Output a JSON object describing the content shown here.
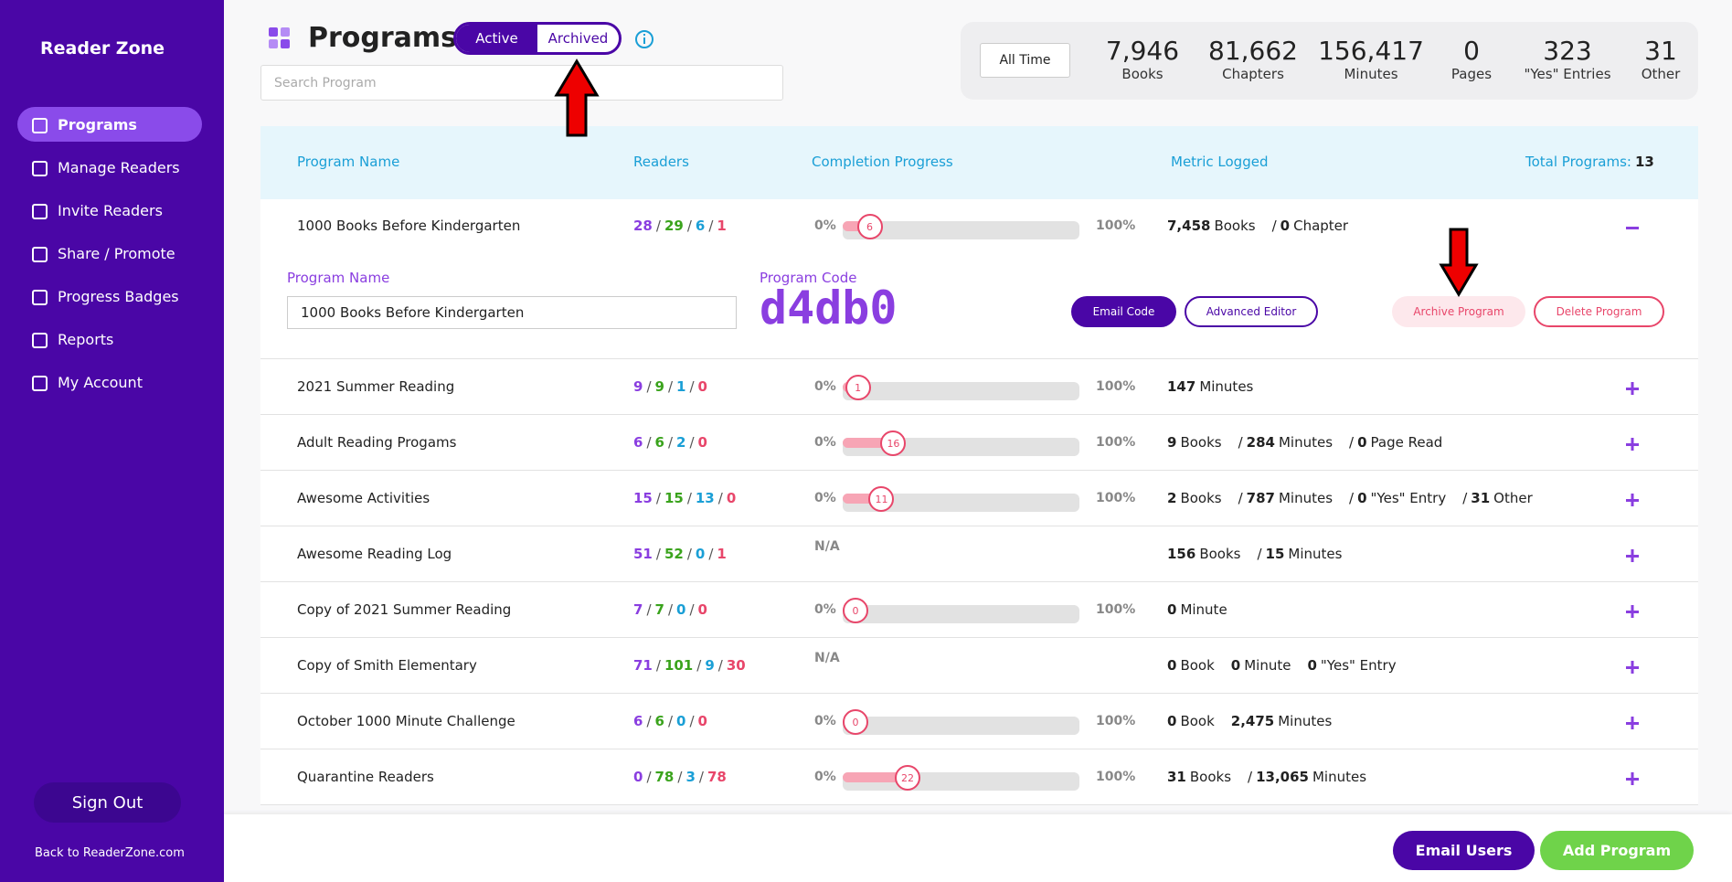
{
  "sidebar": {
    "brand": "Reader Zone",
    "nav": [
      "Programs",
      "Manage Readers",
      "Invite Readers",
      "Share / Promote",
      "Progress Badges",
      "Reports",
      "My Account"
    ],
    "active": 0,
    "sign_out": "Sign Out",
    "back_link": "Back to ReaderZone.com"
  },
  "header": {
    "title": "Programs",
    "tabs": [
      "Active",
      "Archived"
    ],
    "active_tab": 0,
    "search_placeholder": "Search Program"
  },
  "stats": {
    "filter": "All Time",
    "items": [
      {
        "value": "7,946",
        "label": "Books"
      },
      {
        "value": "81,662",
        "label": "Chapters"
      },
      {
        "value": "156,417",
        "label": "Minutes"
      },
      {
        "value": "0",
        "label": "Pages"
      },
      {
        "value": "323",
        "label": "\"Yes\" Entries"
      },
      {
        "value": "31",
        "label": "Other"
      }
    ]
  },
  "table": {
    "columns": [
      "Program Name",
      "Readers",
      "Completion Progress",
      "Metric Logged"
    ],
    "total_label": "Total Programs:",
    "total": "13",
    "reader_separator": "/",
    "progress_min": "0%",
    "progress_max": "100%",
    "rows": [
      {
        "name": "1000 Books Before Kindergarten",
        "readers": [
          28,
          29,
          6,
          1
        ],
        "progress": 6,
        "metrics": [
          {
            "value": "7,458",
            "unit": "Books"
          },
          {
            "sep": "/",
            "value": "0",
            "unit": "Chapter"
          }
        ],
        "expanded": true
      },
      {
        "name": "2021 Summer Reading",
        "readers": [
          9,
          9,
          1,
          0
        ],
        "progress": 1,
        "metrics": [
          {
            "value": "147",
            "unit": "Minutes"
          }
        ]
      },
      {
        "name": "Adult Reading Progams",
        "readers": [
          6,
          6,
          2,
          0
        ],
        "progress": 16,
        "metrics": [
          {
            "value": "9",
            "unit": "Books"
          },
          {
            "sep": "/",
            "value": "284",
            "unit": "Minutes"
          },
          {
            "sep": "/",
            "value": "0",
            "unit": "Page Read"
          }
        ]
      },
      {
        "name": "Awesome Activities",
        "readers": [
          15,
          15,
          13,
          0
        ],
        "progress": 11,
        "metrics": [
          {
            "value": "2",
            "unit": "Books"
          },
          {
            "sep": "/",
            "value": "787",
            "unit": "Minutes"
          },
          {
            "sep": "/",
            "value": "0",
            "unit": "\"Yes\" Entry"
          },
          {
            "sep": "/",
            "value": "31",
            "unit": "Other"
          }
        ]
      },
      {
        "name": "Awesome Reading Log",
        "readers": [
          51,
          52,
          0,
          1
        ],
        "progress_text": "N/A",
        "metrics": [
          {
            "value": "156",
            "unit": "Books"
          },
          {
            "sep": "/",
            "value": "15",
            "unit": "Minutes"
          }
        ]
      },
      {
        "name": "Copy of 2021 Summer Reading",
        "readers": [
          7,
          7,
          0,
          0
        ],
        "progress": 0,
        "metrics": [
          {
            "value": "0",
            "unit": "Minute"
          }
        ]
      },
      {
        "name": "Copy of Smith Elementary",
        "readers": [
          71,
          101,
          9,
          30
        ],
        "progress_text": "N/A",
        "metrics": [
          {
            "value": "0",
            "unit": "Book"
          },
          {
            "value": "0",
            "unit": "Minute"
          },
          {
            "value": "0",
            "unit": "\"Yes\" Entry"
          }
        ]
      },
      {
        "name": "October 1000 Minute Challenge",
        "readers": [
          6,
          6,
          0,
          0
        ],
        "progress": 0,
        "metrics": [
          {
            "value": "0",
            "unit": "Book"
          },
          {
            "value": "2,475",
            "unit": "Minutes"
          }
        ]
      },
      {
        "name": "Quarantine Readers",
        "readers": [
          0,
          78,
          3,
          78
        ],
        "progress": 22,
        "metrics": [
          {
            "value": "31",
            "unit": "Books"
          },
          {
            "sep": "/",
            "value": "13,065",
            "unit": "Minutes"
          }
        ]
      }
    ]
  },
  "expanded": {
    "name_label": "Program Name",
    "name_value": "1000 Books Before Kindergarten",
    "code_label": "Program Code",
    "code": "d4db0",
    "buttons": [
      "Email Code",
      "Advanced Editor",
      "Archive Program",
      "Delete Program"
    ]
  },
  "footer": {
    "buttons": [
      "Email Users",
      "Add Program"
    ]
  }
}
